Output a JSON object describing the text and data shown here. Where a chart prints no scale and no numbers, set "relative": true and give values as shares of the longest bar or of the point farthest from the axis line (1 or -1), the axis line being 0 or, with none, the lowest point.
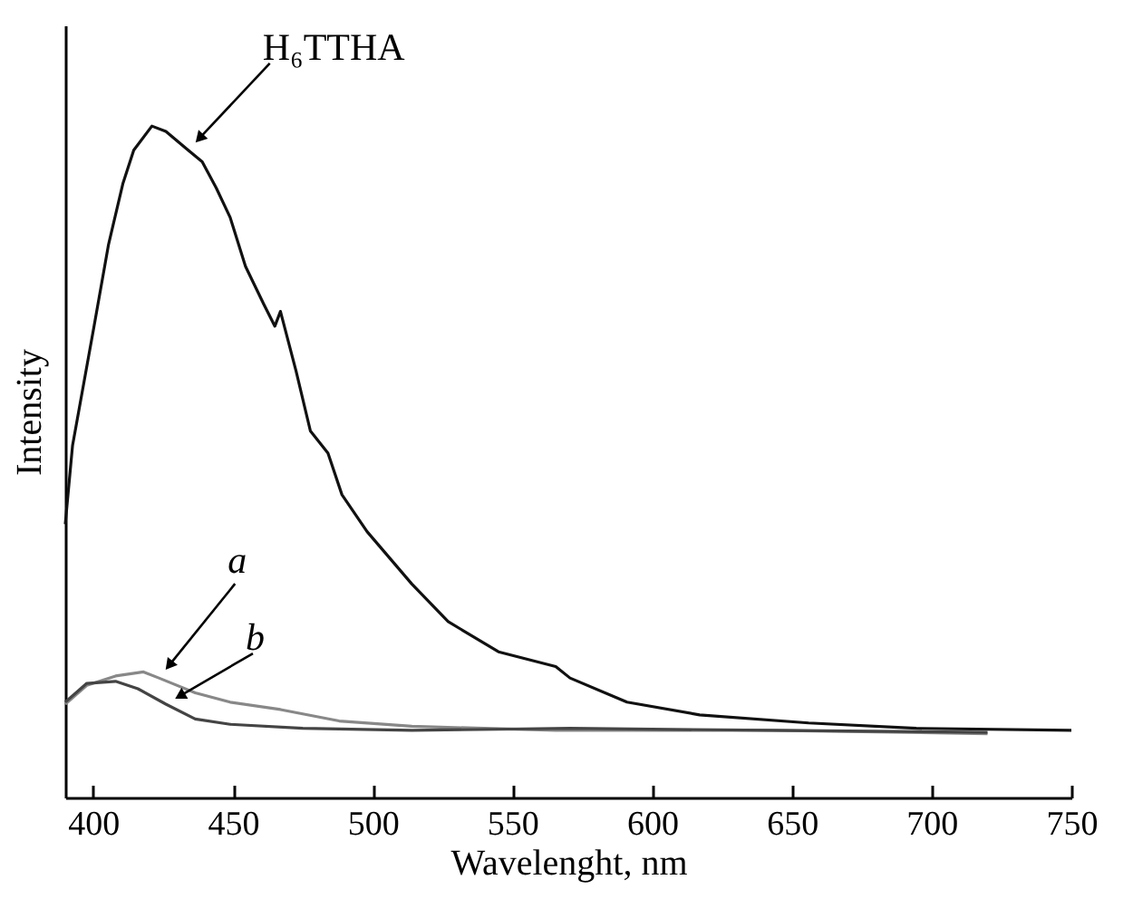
{
  "chart_data": {
    "type": "line",
    "relative": true,
    "xlabel": "Wavelenght, nm",
    "ylabel": "Intensity",
    "xlim": [
      390,
      750
    ],
    "xticks": [
      400,
      450,
      500,
      550,
      600,
      650,
      700,
      750
    ],
    "series": [
      {
        "name": "H₆TTHA",
        "color": "#111111",
        "x": [
          390,
          392.6,
          400.3,
          405.5,
          410.6,
          414.5,
          421,
          426,
          434,
          439,
          444,
          449,
          454.5,
          461,
          465,
          467,
          472.6,
          477.7,
          484,
          489,
          498,
          514,
          527,
          545,
          565.5,
          570.6,
          591,
          617,
          656,
          694.5,
          750
        ],
        "values": [
          0.407,
          0.524,
          0.702,
          0.824,
          0.914,
          0.964,
          1,
          0.992,
          0.964,
          0.947,
          0.908,
          0.864,
          0.791,
          0.735,
          0.702,
          0.724,
          0.635,
          0.546,
          0.513,
          0.451,
          0.396,
          0.318,
          0.262,
          0.217,
          0.195,
          0.178,
          0.142,
          0.123,
          0.111,
          0.103,
          0.1
        ]
      },
      {
        "name": "a",
        "color": "#888888",
        "x": [
          390,
          397.7,
          408,
          418,
          423.5,
          436.5,
          449,
          467,
          488,
          514,
          565.5,
          643,
          720
        ],
        "values": [
          0.139,
          0.167,
          0.181,
          0.187,
          0.178,
          0.156,
          0.142,
          0.131,
          0.114,
          0.106,
          0.1,
          0.1,
          0.095
        ]
      },
      {
        "name": "b",
        "color": "#444444",
        "x": [
          390,
          397.7,
          408,
          416,
          426,
          436.5,
          449,
          475,
          514,
          570.6,
          643,
          720
        ],
        "values": [
          0.142,
          0.17,
          0.173,
          0.162,
          0.139,
          0.117,
          0.109,
          0.103,
          0.1,
          0.103,
          0.1,
          0.097
        ]
      }
    ]
  }
}
